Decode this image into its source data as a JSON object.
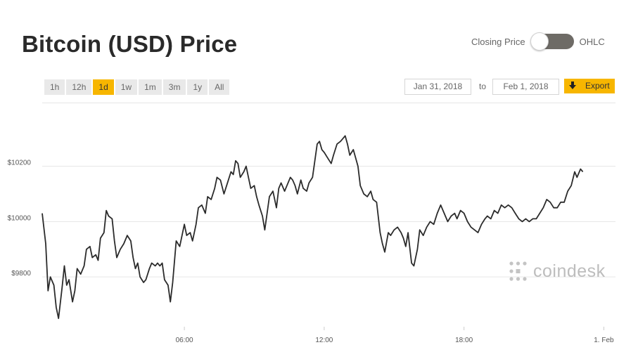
{
  "title": "Bitcoin (USD) Price",
  "toggle": {
    "left_label": "Closing Price",
    "right_label": "OHLC"
  },
  "ranges": [
    {
      "label": "1h",
      "active": false
    },
    {
      "label": "12h",
      "active": false
    },
    {
      "label": "1d",
      "active": true
    },
    {
      "label": "1w",
      "active": false
    },
    {
      "label": "1m",
      "active": false
    },
    {
      "label": "3m",
      "active": false
    },
    {
      "label": "1y",
      "active": false
    },
    {
      "label": "All",
      "active": false
    }
  ],
  "date_from": "Jan 31, 2018",
  "to_label": "to",
  "date_to": "Feb 1, 2018",
  "export_label": "Export",
  "watermark": "coindesk",
  "colors": {
    "accent": "#f7b600",
    "line": "#2b2b2b",
    "grid": "#e6e6e6",
    "toggle": "#6e6b66"
  },
  "chart_data": {
    "type": "line",
    "y_ticks": [
      {
        "value": 9800,
        "label": "$9800"
      },
      {
        "value": 10000,
        "label": "$10000"
      },
      {
        "value": 10200,
        "label": "$10200"
      }
    ],
    "x_ticks": [
      {
        "hour": 6,
        "label": "06:00"
      },
      {
        "hour": 12,
        "label": "12:00"
      },
      {
        "hour": 18,
        "label": "18:00"
      },
      {
        "hour": 24,
        "label": "1. Feb"
      }
    ],
    "xlim": [
      -0.1,
      24.5
    ],
    "ylim": [
      9620,
      10420
    ],
    "grid": true,
    "series": [
      {
        "values": [
          [
            -0.1,
            10030
          ],
          [
            0.05,
            9920
          ],
          [
            0.15,
            9750
          ],
          [
            0.25,
            9800
          ],
          [
            0.4,
            9770
          ],
          [
            0.5,
            9690
          ],
          [
            0.6,
            9650
          ],
          [
            0.75,
            9760
          ],
          [
            0.85,
            9840
          ],
          [
            0.95,
            9770
          ],
          [
            1.05,
            9790
          ],
          [
            1.2,
            9710
          ],
          [
            1.3,
            9750
          ],
          [
            1.4,
            9830
          ],
          [
            1.55,
            9810
          ],
          [
            1.7,
            9840
          ],
          [
            1.8,
            9900
          ],
          [
            1.95,
            9910
          ],
          [
            2.05,
            9870
          ],
          [
            2.2,
            9880
          ],
          [
            2.3,
            9860
          ],
          [
            2.4,
            9940
          ],
          [
            2.55,
            9960
          ],
          [
            2.65,
            10040
          ],
          [
            2.75,
            10020
          ],
          [
            2.9,
            10010
          ],
          [
            3.0,
            9930
          ],
          [
            3.1,
            9870
          ],
          [
            3.25,
            9900
          ],
          [
            3.4,
            9920
          ],
          [
            3.55,
            9950
          ],
          [
            3.7,
            9930
          ],
          [
            3.8,
            9870
          ],
          [
            3.9,
            9830
          ],
          [
            4.0,
            9850
          ],
          [
            4.1,
            9800
          ],
          [
            4.25,
            9780
          ],
          [
            4.35,
            9790
          ],
          [
            4.5,
            9830
          ],
          [
            4.6,
            9850
          ],
          [
            4.75,
            9840
          ],
          [
            4.85,
            9850
          ],
          [
            4.95,
            9840
          ],
          [
            5.05,
            9850
          ],
          [
            5.15,
            9790
          ],
          [
            5.3,
            9770
          ],
          [
            5.4,
            9710
          ],
          [
            5.5,
            9780
          ],
          [
            5.65,
            9930
          ],
          [
            5.8,
            9910
          ],
          [
            5.9,
            9950
          ],
          [
            6.0,
            9990
          ],
          [
            6.1,
            9950
          ],
          [
            6.25,
            9960
          ],
          [
            6.35,
            9930
          ],
          [
            6.5,
            9990
          ],
          [
            6.6,
            10050
          ],
          [
            6.75,
            10060
          ],
          [
            6.9,
            10030
          ],
          [
            7.0,
            10090
          ],
          [
            7.15,
            10080
          ],
          [
            7.3,
            10120
          ],
          [
            7.4,
            10160
          ],
          [
            7.55,
            10150
          ],
          [
            7.7,
            10100
          ],
          [
            7.85,
            10140
          ],
          [
            8.0,
            10180
          ],
          [
            8.1,
            10170
          ],
          [
            8.2,
            10220
          ],
          [
            8.3,
            10210
          ],
          [
            8.4,
            10160
          ],
          [
            8.55,
            10180
          ],
          [
            8.65,
            10200
          ],
          [
            8.75,
            10160
          ],
          [
            8.85,
            10120
          ],
          [
            9.0,
            10130
          ],
          [
            9.1,
            10090
          ],
          [
            9.2,
            10060
          ],
          [
            9.35,
            10020
          ],
          [
            9.45,
            9970
          ],
          [
            9.55,
            10030
          ],
          [
            9.65,
            10090
          ],
          [
            9.8,
            10110
          ],
          [
            9.95,
            10050
          ],
          [
            10.05,
            10120
          ],
          [
            10.15,
            10140
          ],
          [
            10.3,
            10110
          ],
          [
            10.4,
            10130
          ],
          [
            10.55,
            10160
          ],
          [
            10.65,
            10150
          ],
          [
            10.75,
            10130
          ],
          [
            10.85,
            10100
          ],
          [
            11.0,
            10150
          ],
          [
            11.1,
            10120
          ],
          [
            11.25,
            10110
          ],
          [
            11.35,
            10140
          ],
          [
            11.5,
            10160
          ],
          [
            11.6,
            10220
          ],
          [
            11.7,
            10280
          ],
          [
            11.8,
            10290
          ],
          [
            11.9,
            10260
          ],
          [
            12.0,
            10250
          ],
          [
            12.15,
            10230
          ],
          [
            12.3,
            10210
          ],
          [
            12.4,
            10240
          ],
          [
            12.55,
            10280
          ],
          [
            12.7,
            10290
          ],
          [
            12.8,
            10300
          ],
          [
            12.9,
            10310
          ],
          [
            13.0,
            10280
          ],
          [
            13.1,
            10240
          ],
          [
            13.25,
            10260
          ],
          [
            13.35,
            10230
          ],
          [
            13.45,
            10200
          ],
          [
            13.55,
            10130
          ],
          [
            13.7,
            10100
          ],
          [
            13.85,
            10090
          ],
          [
            14.0,
            10110
          ],
          [
            14.1,
            10080
          ],
          [
            14.25,
            10070
          ],
          [
            14.4,
            9960
          ],
          [
            14.5,
            9920
          ],
          [
            14.6,
            9890
          ],
          [
            14.75,
            9960
          ],
          [
            14.85,
            9950
          ],
          [
            15.0,
            9970
          ],
          [
            15.15,
            9980
          ],
          [
            15.3,
            9960
          ],
          [
            15.4,
            9940
          ],
          [
            15.5,
            9910
          ],
          [
            15.6,
            9960
          ],
          [
            15.75,
            9850
          ],
          [
            15.85,
            9840
          ],
          [
            16.0,
            9900
          ],
          [
            16.1,
            9970
          ],
          [
            16.25,
            9950
          ],
          [
            16.4,
            9980
          ],
          [
            16.55,
            10000
          ],
          [
            16.7,
            9990
          ],
          [
            16.85,
            10030
          ],
          [
            17.0,
            10060
          ],
          [
            17.15,
            10030
          ],
          [
            17.3,
            10000
          ],
          [
            17.45,
            10020
          ],
          [
            17.6,
            10030
          ],
          [
            17.7,
            10010
          ],
          [
            17.85,
            10040
          ],
          [
            18.0,
            10030
          ],
          [
            18.15,
            10000
          ],
          [
            18.3,
            9980
          ],
          [
            18.45,
            9970
          ],
          [
            18.6,
            9960
          ],
          [
            18.75,
            9990
          ],
          [
            18.9,
            10010
          ],
          [
            19.0,
            10020
          ],
          [
            19.15,
            10010
          ],
          [
            19.3,
            10040
          ],
          [
            19.45,
            10030
          ],
          [
            19.6,
            10060
          ],
          [
            19.75,
            10050
          ],
          [
            19.9,
            10060
          ],
          [
            20.05,
            10050
          ],
          [
            20.2,
            10030
          ],
          [
            20.35,
            10010
          ],
          [
            20.5,
            10000
          ],
          [
            20.65,
            10010
          ],
          [
            20.8,
            10000
          ],
          [
            20.95,
            10010
          ],
          [
            21.1,
            10010
          ],
          [
            21.25,
            10030
          ],
          [
            21.4,
            10050
          ],
          [
            21.55,
            10080
          ],
          [
            21.7,
            10070
          ],
          [
            21.85,
            10050
          ],
          [
            22.0,
            10050
          ],
          [
            22.15,
            10070
          ],
          [
            22.3,
            10070
          ],
          [
            22.45,
            10110
          ],
          [
            22.6,
            10130
          ],
          [
            22.75,
            10180
          ],
          [
            22.85,
            10160
          ],
          [
            23.0,
            10190
          ],
          [
            23.1,
            10180
          ]
        ]
      }
    ]
  }
}
